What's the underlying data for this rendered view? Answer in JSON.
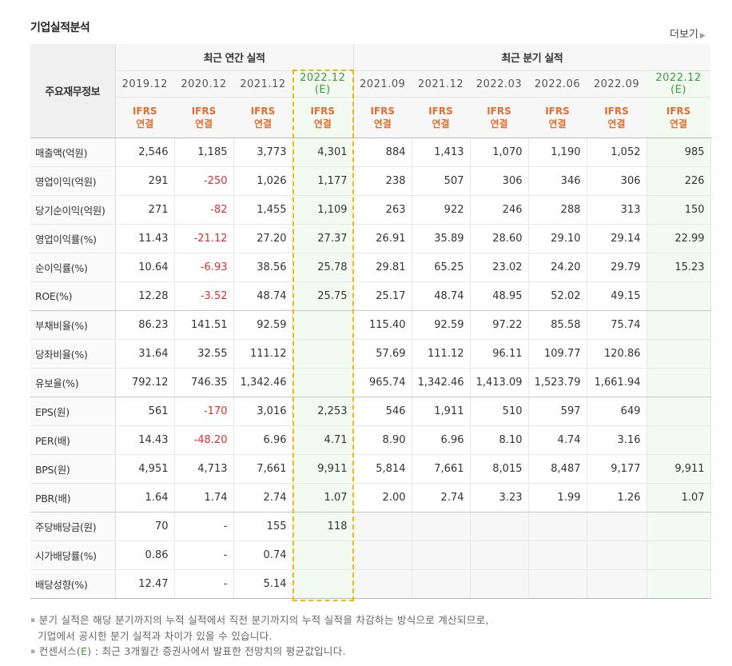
{
  "title": "기업실적분석",
  "more_label": "더보기",
  "header": {
    "label": "주요재무정보",
    "annual_group": "최근 연간 실적",
    "quarter_group": "최근 분기 실적",
    "annual_cols": [
      {
        "period": "2019.12",
        "est": ""
      },
      {
        "period": "2020.12",
        "est": ""
      },
      {
        "period": "2021.12",
        "est": ""
      },
      {
        "period": "2022.12",
        "est": "(E)"
      }
    ],
    "quarter_cols": [
      {
        "period": "2021.09",
        "est": ""
      },
      {
        "period": "2021.12",
        "est": ""
      },
      {
        "period": "2022.03",
        "est": ""
      },
      {
        "period": "2022.06",
        "est": ""
      },
      {
        "period": "2022.09",
        "est": ""
      },
      {
        "period": "2022.12",
        "est": "(E)"
      }
    ],
    "ifrs_top": "IFRS",
    "ifrs_bottom": "연결"
  },
  "rows": [
    {
      "label": "매출액(억원)",
      "v": [
        "2,546",
        "1,185",
        "3,773",
        "4,301",
        "884",
        "1,413",
        "1,070",
        "1,190",
        "1,052",
        "985"
      ]
    },
    {
      "label": "영업이익(억원)",
      "v": [
        "291",
        "-250",
        "1,026",
        "1,177",
        "238",
        "507",
        "306",
        "346",
        "306",
        "226"
      ]
    },
    {
      "label": "당기순이익(억원)",
      "v": [
        "271",
        "-82",
        "1,455",
        "1,109",
        "263",
        "922",
        "246",
        "288",
        "313",
        "150"
      ]
    },
    {
      "label": "영업이익률(%)",
      "v": [
        "11.43",
        "-21.12",
        "27.20",
        "27.37",
        "26.91",
        "35.89",
        "28.60",
        "29.10",
        "29.14",
        "22.99"
      ]
    },
    {
      "label": "순이익률(%)",
      "v": [
        "10.64",
        "-6.93",
        "38.56",
        "25.78",
        "29.81",
        "65.25",
        "23.02",
        "24.20",
        "29.79",
        "15.23"
      ]
    },
    {
      "label": "ROE(%)",
      "v": [
        "12.28",
        "-3.52",
        "48.74",
        "25.75",
        "25.17",
        "48.74",
        "48.95",
        "52.02",
        "49.15",
        ""
      ]
    },
    {
      "label": "부채비율(%)",
      "v": [
        "86.23",
        "141.51",
        "92.59",
        "",
        "115.40",
        "92.59",
        "97.22",
        "85.58",
        "75.74",
        ""
      ]
    },
    {
      "label": "당좌비율(%)",
      "v": [
        "31.64",
        "32.55",
        "111.12",
        "",
        "57.69",
        "111.12",
        "96.11",
        "109.77",
        "120.86",
        ""
      ]
    },
    {
      "label": "유보율(%)",
      "v": [
        "792.12",
        "746.35",
        "1,342.46",
        "",
        "965.74",
        "1,342.46",
        "1,413.09",
        "1,523.79",
        "1,661.94",
        ""
      ]
    },
    {
      "label": "EPS(원)",
      "v": [
        "561",
        "-170",
        "3,016",
        "2,253",
        "546",
        "1,911",
        "510",
        "597",
        "649",
        ""
      ]
    },
    {
      "label": "PER(배)",
      "v": [
        "14.43",
        "-48.20",
        "6.96",
        "4.71",
        "8.90",
        "6.96",
        "8.10",
        "4.74",
        "3.16",
        ""
      ]
    },
    {
      "label": "BPS(원)",
      "v": [
        "4,951",
        "4,713",
        "7,661",
        "9,911",
        "5,814",
        "7,661",
        "8,015",
        "8,487",
        "9,177",
        "9,911"
      ]
    },
    {
      "label": "PBR(배)",
      "v": [
        "1.64",
        "1.74",
        "2.74",
        "1.07",
        "2.00",
        "2.74",
        "3.23",
        "1.99",
        "1.26",
        "1.07"
      ]
    },
    {
      "label": "주당배당금(원)",
      "v": [
        "70",
        "-",
        "155",
        "118",
        "",
        "",
        "",
        "",
        "",
        ""
      ]
    },
    {
      "label": "시가배당률(%)",
      "v": [
        "0.86",
        "-",
        "0.74",
        "",
        "",
        "",
        "",
        "",
        "",
        ""
      ]
    },
    {
      "label": "배당성향(%)",
      "v": [
        "12.47",
        "-",
        "5.14",
        "",
        "",
        "",
        "",
        "",
        "",
        ""
      ]
    }
  ],
  "notes": {
    "line1": "분기 실적은 해당 분기까지의 누적 실적에서 직전 분기까지의 누적 실적을 차감하는 방식으로 계산되므로,",
    "line2": "기업에서 공시한 분기 실적과 차이가 있을 수 있습니다.",
    "line3_prefix": "컨센서스(",
    "line3_e": "E",
    "line3_suffix": ") : 최근 3개월간 증권사에서 발표한 전망치의 평균값입니다."
  },
  "colors": {
    "negative": "#e0302f",
    "ifrs": "#e56d2f",
    "estimate": "#3a9a3a",
    "highlight": "#f5b800"
  }
}
